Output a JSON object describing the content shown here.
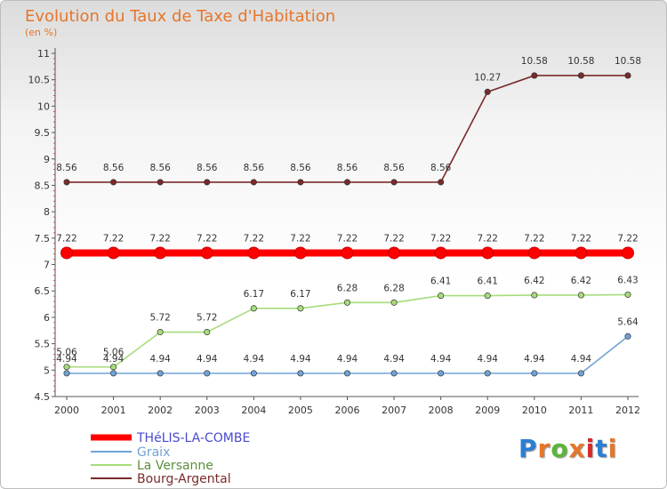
{
  "chart_data": {
    "type": "line",
    "title": "Evolution du Taux de Taxe d'Habitation",
    "subtitle": "(en %)",
    "categories": [
      "2000",
      "2001",
      "2002",
      "2003",
      "2004",
      "2005",
      "2006",
      "2007",
      "2008",
      "2009",
      "2010",
      "2011",
      "2012"
    ],
    "ylim": [
      4.5,
      11
    ],
    "yticks": [
      "4.5",
      "5",
      "5.5",
      "6",
      "6.5",
      "7",
      "7.5",
      "8",
      "8.5",
      "9",
      "9.5",
      "10",
      "10.5",
      "11"
    ],
    "series": [
      {
        "name": "THéLIS-LA-COMBE",
        "color": "#ff0000",
        "values": [
          7.22,
          7.22,
          7.22,
          7.22,
          7.22,
          7.22,
          7.22,
          7.22,
          7.22,
          7.22,
          7.22,
          7.22,
          7.22
        ],
        "labels": [
          "7.22",
          "7.22",
          "7.22",
          "7.22",
          "7.22",
          "7.22",
          "7.22",
          "7.22",
          "7.22",
          "7.22",
          "7.22",
          "7.22",
          "7.22"
        ]
      },
      {
        "name": "Graix",
        "color": "#6fa3d6",
        "values": [
          4.94,
          4.94,
          4.94,
          4.94,
          4.94,
          4.94,
          4.94,
          4.94,
          4.94,
          4.94,
          4.94,
          4.94,
          5.64
        ],
        "labels": [
          "4.94",
          "4.94",
          "4.94",
          "4.94",
          "4.94",
          "4.94",
          "4.94",
          "4.94",
          "4.94",
          "4.94",
          "4.94",
          "4.94",
          "5.64"
        ]
      },
      {
        "name": "La Versanne",
        "color": "#a6dc7a",
        "values": [
          5.06,
          5.06,
          5.72,
          5.72,
          6.17,
          6.17,
          6.28,
          6.28,
          6.41,
          6.41,
          6.42,
          6.42,
          6.43
        ],
        "labels": [
          "5.06",
          "5.06",
          "5.72",
          "5.72",
          "6.17",
          "6.17",
          "6.28",
          "6.28",
          "6.41",
          "6.41",
          "6.42",
          "6.42",
          "6.43"
        ]
      },
      {
        "name": "Bourg-Argental",
        "color": "#7a2a2a",
        "values": [
          8.56,
          8.56,
          8.56,
          8.56,
          8.56,
          8.56,
          8.56,
          8.56,
          8.56,
          10.27,
          10.58,
          10.58,
          10.58
        ],
        "labels": [
          "8.56",
          "8.56",
          "8.56",
          "8.56",
          "8.56",
          "8.56",
          "8.56",
          "8.56",
          "8.56",
          "10.27",
          "10.58",
          "10.58",
          "10.58"
        ]
      }
    ],
    "legend_position": "bottom-left"
  },
  "logo": {
    "text": "Proxiti",
    "colors": [
      "#2a7fd4",
      "#e6762a",
      "#5bb53a",
      "#e6762a",
      "#d42a2a",
      "#2a7fd4",
      "#e6762a"
    ]
  }
}
